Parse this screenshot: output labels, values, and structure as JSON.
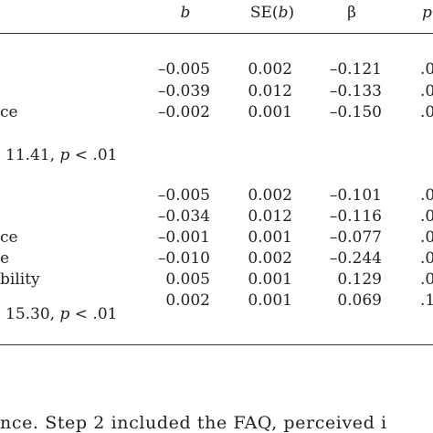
{
  "table": {
    "headers": {
      "b": "b",
      "se_prefix": "SE(",
      "se_var": "b",
      "se_suffix": ")",
      "beta": "β",
      "p": "p"
    },
    "step1": {
      "rows": [
        {
          "label": "",
          "b": "–0.005",
          "se": "0.002",
          "beta": "–0.121",
          "p": ".0"
        },
        {
          "label": "",
          "b": "–0.039",
          "se": "0.012",
          "beta": "–0.133",
          "p": ".0"
        },
        {
          "label": "ce",
          "b": "–0.002",
          "se": "0.001",
          "beta": "–0.150",
          "p": ".0"
        }
      ],
      "fit_value": "11.41,",
      "fit_p": "p",
      "fit_rest": "< .01"
    },
    "step2": {
      "rows": [
        {
          "label": "",
          "b": "–0.005",
          "se": "0.002",
          "beta": "–0.101",
          "p": ".0"
        },
        {
          "label": "",
          "b": "–0.034",
          "se": "0.012",
          "beta": "–0.116",
          "p": ".0"
        },
        {
          "label": "ce",
          "b": "–0.001",
          "se": "0.001",
          "beta": "–0.077",
          "p": ".0"
        },
        {
          "label": "e",
          "b": "–0.010",
          "se": "0.002",
          "beta": "–0.244",
          "p": ".0"
        },
        {
          "label": "bility",
          "b": "0.005",
          "se": "0.001",
          "beta": "0.129",
          "p": ".0"
        },
        {
          "label": "",
          "b": "0.002",
          "se": "0.001",
          "beta": "0.069",
          "p": ".1"
        }
      ],
      "fit_value": "15.30,",
      "fit_p": "p",
      "fit_rest": "< .01"
    }
  },
  "note": {
    "text": "nce. Step 2 included the FAQ, perceived i"
  }
}
